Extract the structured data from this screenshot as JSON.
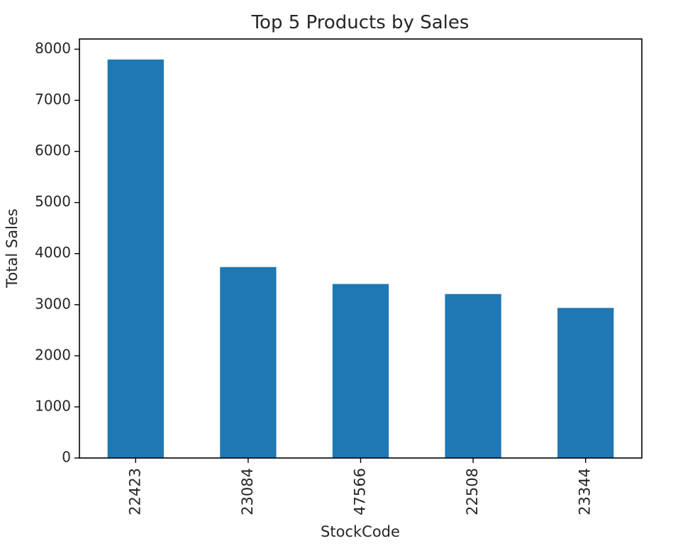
{
  "chart_data": {
    "type": "bar",
    "title": "Top 5 Products by Sales",
    "xlabel": "StockCode",
    "ylabel": "Total Sales",
    "categories": [
      "22423",
      "23084",
      "47566",
      "22508",
      "23344"
    ],
    "values": [
      7798,
      3737,
      3405,
      3209,
      2937
    ],
    "ylim": [
      0,
      8200
    ],
    "yticks": [
      0,
      1000,
      2000,
      3000,
      4000,
      5000,
      6000,
      7000,
      8000
    ],
    "grid": false,
    "bar_color": "#1f77b4",
    "xtick_rotation": "vertical"
  }
}
